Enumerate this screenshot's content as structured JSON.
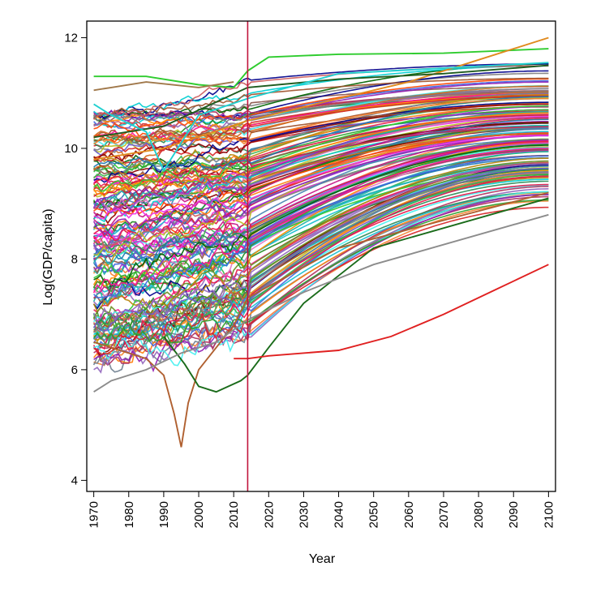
{
  "chart_data": {
    "type": "line",
    "title": "",
    "xlabel": "Year",
    "ylabel": "Log(GDP/capita)",
    "xlim": [
      1968,
      2102
    ],
    "ylim": [
      3.8,
      12.3
    ],
    "x_ticks": [
      1970,
      1980,
      1990,
      2000,
      2010,
      2020,
      2030,
      2040,
      2050,
      2060,
      2070,
      2080,
      2090,
      2100
    ],
    "x_tick_labels": [
      "1970",
      "1980",
      "1990",
      "2000",
      "2010",
      "2020",
      "2030",
      "2040",
      "2050",
      "2060",
      "2070",
      "2080",
      "2090",
      "2100"
    ],
    "y_ticks": [
      4,
      6,
      8,
      10,
      12
    ],
    "y_tick_labels": [
      "4",
      "6",
      "8",
      "10",
      "12"
    ],
    "grid": false,
    "legend": "none",
    "vertical_line": {
      "x": 2014,
      "color": "#c0143c"
    },
    "series_count_approx": 180,
    "highlight_series": [
      {
        "color": "#2ecc2e",
        "points": [
          [
            1970,
            11.3
          ],
          [
            1985,
            11.3
          ],
          [
            2000,
            11.15
          ],
          [
            2010,
            11.1
          ],
          [
            2014,
            11.4
          ],
          [
            2020,
            11.65
          ],
          [
            2040,
            11.7
          ],
          [
            2070,
            11.72
          ],
          [
            2100,
            11.8
          ]
        ]
      },
      {
        "color": "#e08a1e",
        "points": [
          [
            1970,
            9.8
          ],
          [
            1990,
            10.0
          ],
          [
            2014,
            10.5
          ],
          [
            2040,
            10.9
          ],
          [
            2060,
            11.2
          ],
          [
            2080,
            11.6
          ],
          [
            2100,
            12.0
          ]
        ]
      },
      {
        "color": "#1f5c1f",
        "points": [
          [
            1970,
            10.2
          ],
          [
            1990,
            10.4
          ],
          [
            2014,
            11.1
          ],
          [
            2040,
            11.25
          ],
          [
            2070,
            11.35
          ],
          [
            2100,
            11.5
          ]
        ]
      },
      {
        "color": "#a0784a",
        "points": [
          [
            1970,
            11.05
          ],
          [
            1975,
            11.1
          ],
          [
            1985,
            11.2
          ],
          [
            2000,
            11.1
          ],
          [
            2010,
            11.2
          ]
        ]
      },
      {
        "color": "#b06030",
        "points": [
          [
            1970,
            6.5
          ],
          [
            1985,
            6.2
          ],
          [
            1990,
            5.9
          ],
          [
            1993,
            5.2
          ],
          [
            1995,
            4.6
          ],
          [
            1997,
            5.4
          ],
          [
            2000,
            6.0
          ],
          [
            2010,
            6.8
          ],
          [
            2014,
            7.3
          ],
          [
            2040,
            8.2
          ],
          [
            2100,
            9.2
          ]
        ]
      },
      {
        "color": "#1a6b1a",
        "points": [
          [
            1990,
            6.6
          ],
          [
            1996,
            6.1
          ],
          [
            2000,
            5.7
          ],
          [
            2005,
            5.6
          ],
          [
            2012,
            5.8
          ],
          [
            2014,
            5.9
          ],
          [
            2020,
            6.4
          ],
          [
            2030,
            7.2
          ],
          [
            2050,
            8.2
          ],
          [
            2100,
            9.1
          ]
        ]
      },
      {
        "color": "#e02020",
        "points": [
          [
            2010,
            6.2
          ],
          [
            2014,
            6.2
          ],
          [
            2020,
            6.25
          ],
          [
            2040,
            6.35
          ],
          [
            2055,
            6.6
          ],
          [
            2070,
            7.0
          ],
          [
            2085,
            7.45
          ],
          [
            2100,
            7.9
          ]
        ]
      },
      {
        "color": "#8c8c8c",
        "points": [
          [
            1970,
            5.6
          ],
          [
            1975,
            5.8
          ],
          [
            1985,
            6.0
          ],
          [
            1995,
            6.3
          ],
          [
            2005,
            6.5
          ],
          [
            2014,
            6.9
          ],
          [
            2030,
            7.4
          ],
          [
            2050,
            7.9
          ],
          [
            2100,
            8.8
          ]
        ]
      },
      {
        "color": "#20d0d0",
        "points": [
          [
            1970,
            10.8
          ],
          [
            1975,
            10.6
          ],
          [
            1985,
            10.3
          ],
          [
            1990,
            9.6
          ],
          [
            2000,
            10.6
          ],
          [
            2014,
            10.9
          ],
          [
            2040,
            11.35
          ],
          [
            2100,
            11.55
          ]
        ]
      }
    ]
  }
}
